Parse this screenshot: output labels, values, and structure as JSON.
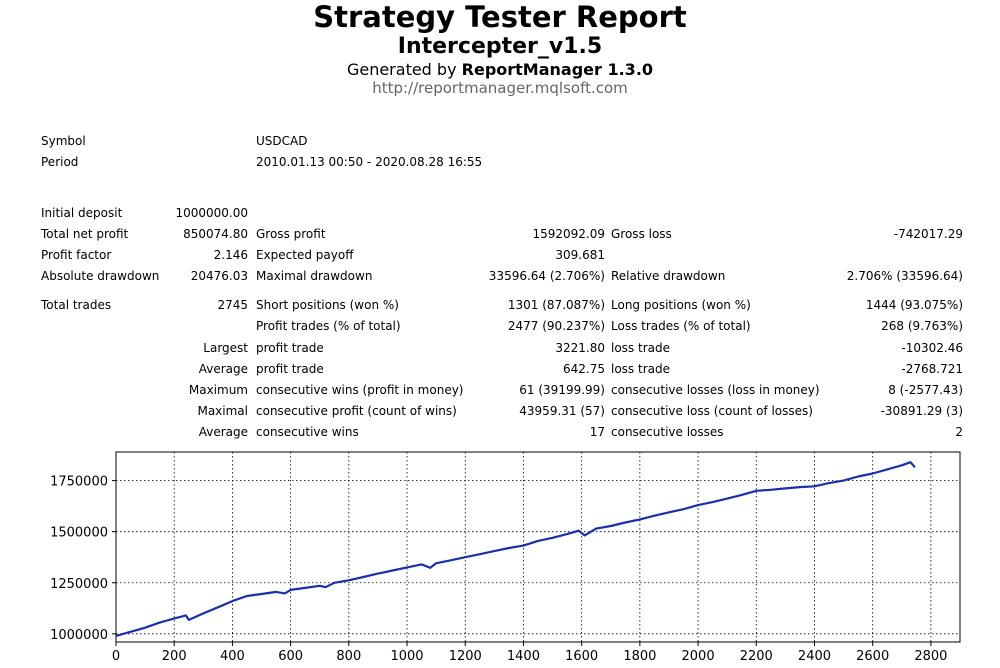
{
  "header": {
    "title": "Strategy Tester Report",
    "subtitle": "Intercepter_v1.5",
    "generated_prefix": "Generated by ",
    "generator": "ReportManager 1.3.0",
    "url": "http://reportmanager.mqlsoft.com"
  },
  "info": {
    "symbol_label": "Symbol",
    "symbol": "USDCAD",
    "period_label": "Period",
    "period": "2010.01.13 00:50 - 2020.08.28 16:55"
  },
  "stats": {
    "initial_deposit": {
      "label": "Initial deposit",
      "value": "1000000.00"
    },
    "total_net_profit": {
      "label": "Total net profit",
      "value": "850074.80"
    },
    "gross_profit": {
      "label": "Gross profit",
      "value": "1592092.09"
    },
    "gross_loss": {
      "label": "Gross loss",
      "value": "-742017.29"
    },
    "profit_factor": {
      "label": "Profit factor",
      "value": "2.146"
    },
    "expected_payoff": {
      "label": "Expected payoff",
      "value": "309.681"
    },
    "absolute_drawdown": {
      "label": "Absolute drawdown",
      "value": "20476.03"
    },
    "maximal_drawdown": {
      "label": "Maximal drawdown",
      "value": "33596.64 (2.706%)"
    },
    "relative_drawdown": {
      "label": "Relative drawdown",
      "value": "2.706% (33596.64)"
    },
    "total_trades": {
      "label": "Total trades",
      "value": "2745"
    },
    "short_positions": {
      "label": "Short positions (won %)",
      "value": "1301 (87.087%)"
    },
    "long_positions": {
      "label": "Long positions (won %)",
      "value": "1444 (93.075%)"
    },
    "profit_trades": {
      "label": "Profit trades (% of total)",
      "value": "2477 (90.237%)"
    },
    "loss_trades": {
      "label": "Loss trades (% of total)",
      "value": "268 (9.763%)"
    },
    "largest": {
      "prefix": "Largest",
      "profit_label": "profit trade",
      "profit": "3221.80",
      "loss_label": "loss trade",
      "loss": "-10302.46"
    },
    "average": {
      "prefix": "Average",
      "profit_label": "profit trade",
      "profit": "642.75",
      "loss_label": "loss trade",
      "loss": "-2768.721"
    },
    "maximum": {
      "prefix": "Maximum",
      "profit_label": "consecutive wins (profit in money)",
      "profit": "61 (39199.99)",
      "loss_label": "consecutive losses (loss in money)",
      "loss": "8 (-2577.43)"
    },
    "maximal": {
      "prefix": "Maximal",
      "profit_label": "consecutive profit (count of wins)",
      "profit": "43959.31 (57)",
      "loss_label": "consecutive loss (count of losses)",
      "loss": "-30891.29 (3)"
    },
    "average_consec": {
      "prefix": "Average",
      "profit_label": "consecutive wins",
      "profit": "17",
      "loss_label": "consecutive losses",
      "loss": "2"
    }
  },
  "chart_data": {
    "type": "line",
    "x_ticks": [
      0,
      200,
      400,
      600,
      800,
      1000,
      1200,
      1400,
      1600,
      1800,
      2000,
      2200,
      2400,
      2600,
      2800
    ],
    "y_ticks": [
      1000000,
      1250000,
      1500000,
      1750000
    ],
    "xlim": [
      0,
      2900
    ],
    "ylim": [
      960000,
      1890000
    ],
    "grid": true,
    "line_color": "#1a2faa",
    "series": [
      {
        "x": [
          0,
          50,
          100,
          150,
          200,
          240,
          250,
          300,
          350,
          400,
          450,
          500,
          550,
          580,
          600,
          650,
          700,
          720,
          750,
          800,
          850,
          900,
          950,
          1000,
          1050,
          1080,
          1100,
          1150,
          1200,
          1250,
          1300,
          1350,
          1400,
          1450,
          1500,
          1550,
          1590,
          1610,
          1650,
          1700,
          1750,
          1800,
          1850,
          1900,
          1950,
          2000,
          2050,
          2100,
          2150,
          2200,
          2250,
          2300,
          2350,
          2400,
          2450,
          2500,
          2550,
          2600,
          2650,
          2700,
          2730,
          2745
        ],
        "y": [
          990000,
          1010000,
          1030000,
          1055000,
          1075000,
          1090000,
          1068000,
          1100000,
          1130000,
          1160000,
          1185000,
          1195000,
          1205000,
          1198000,
          1215000,
          1225000,
          1235000,
          1228000,
          1250000,
          1262000,
          1278000,
          1295000,
          1310000,
          1325000,
          1340000,
          1323000,
          1345000,
          1360000,
          1375000,
          1390000,
          1405000,
          1420000,
          1432000,
          1455000,
          1470000,
          1488000,
          1505000,
          1482000,
          1515000,
          1528000,
          1545000,
          1560000,
          1578000,
          1595000,
          1610000,
          1630000,
          1645000,
          1662000,
          1680000,
          1700000,
          1705000,
          1712000,
          1718000,
          1722000,
          1738000,
          1750000,
          1770000,
          1785000,
          1805000,
          1825000,
          1840000,
          1815000
        ]
      }
    ]
  }
}
